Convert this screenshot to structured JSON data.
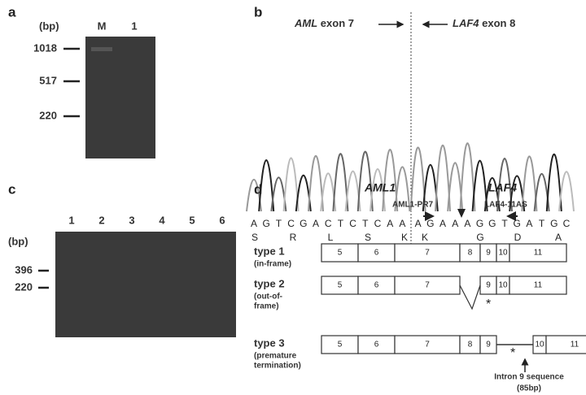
{
  "panels": {
    "a": {
      "label": "a",
      "unit": "(bp)",
      "lanes": [
        "M",
        "1"
      ],
      "markers": [
        "1018",
        "517",
        "220"
      ]
    },
    "b": {
      "label": "b",
      "left_gene": "AML",
      "left_exon": "exon 7",
      "right_gene": "LAF4",
      "right_exon": "exon 8",
      "sequence": [
        "A",
        "G",
        "T",
        "C",
        "G",
        "A",
        "C",
        "T",
        "C",
        "T",
        "C",
        "A",
        "A",
        "A",
        "G",
        "A",
        "A",
        "A",
        "G",
        "G",
        "T",
        "G",
        "A",
        "T",
        "G",
        "C"
      ],
      "amino_acids": [
        "S",
        "R",
        "L",
        "S",
        "K",
        "K",
        "G",
        "D",
        "A"
      ]
    },
    "c": {
      "label": "c",
      "unit": "(bp)",
      "lanes": [
        "1",
        "2",
        "3",
        "4",
        "5",
        "6"
      ],
      "markers": [
        "396",
        "220"
      ]
    },
    "d": {
      "label": "d",
      "gene_left": "AML1",
      "gene_right": "LAF4",
      "primer_left": "AML1-PR7",
      "primer_right": "LAF4-11AS",
      "rows": [
        {
          "type": "type 1",
          "note": "(in-frame)",
          "exons": [
            "5",
            "6",
            "7",
            "8",
            "9",
            "10",
            "11"
          ]
        },
        {
          "type": "type 2",
          "note_lines": [
            "(out-of-",
            "frame)"
          ],
          "exons": [
            "5",
            "6",
            "7",
            "9",
            "10",
            "11"
          ]
        },
        {
          "type": "type 3",
          "note_lines": [
            "(premature",
            "termination)"
          ],
          "exons": [
            "5",
            "6",
            "7",
            "8",
            "9",
            "10",
            "11"
          ]
        }
      ],
      "intron_label": "Intron 9 sequence",
      "intron_size": "(85bp)"
    }
  }
}
